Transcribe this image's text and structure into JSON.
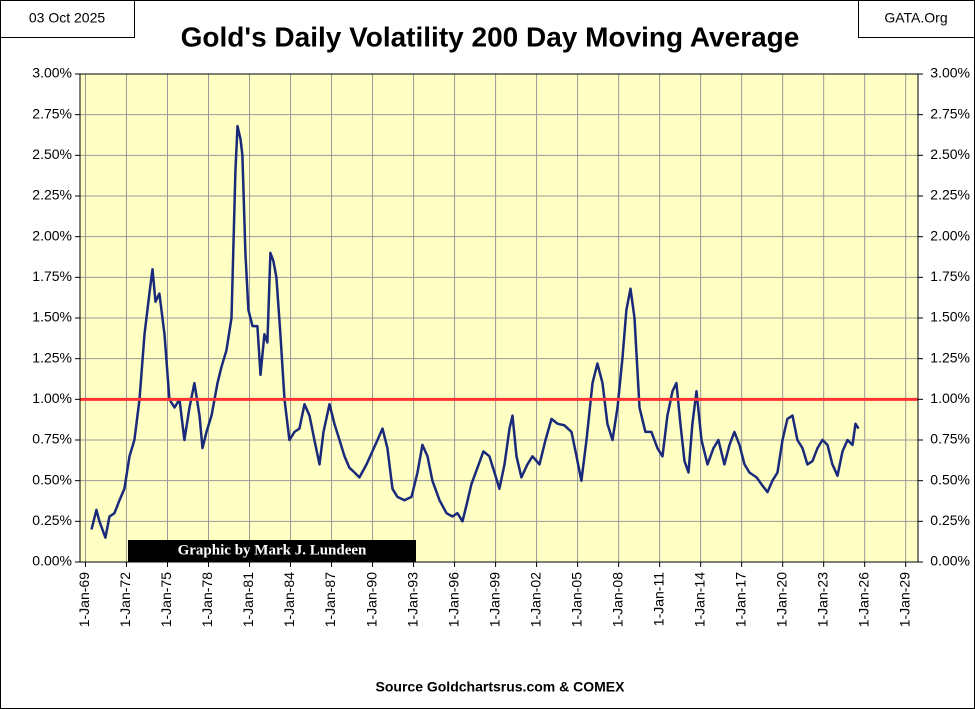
{
  "chart_data": {
    "type": "line",
    "title": "Gold's Daily Volatility 200 Day Moving Average",
    "date_label": "03 Oct 2025",
    "site": "GATA.Org",
    "credit": "Graphic by Mark J. Lundeen",
    "source": "Source Goldchartsrus.com & COMEX",
    "color": "#1a2a7a",
    "grid": true,
    "x": [
      1969.44,
      1969.8,
      1970.02,
      1970.46,
      1970.76,
      1971.12,
      1971.49,
      1971.85,
      1972.22,
      1972.58,
      1972.95,
      1973.32,
      1973.68,
      1973.9,
      1974.12,
      1974.41,
      1974.78,
      1975.14,
      1975.51,
      1975.88,
      1976.24,
      1976.61,
      1976.97,
      1977.34,
      1977.56,
      1977.85,
      1978.22,
      1978.66,
      1978.95,
      1979.31,
      1979.68,
      1979.97,
      1980.12,
      1980.34,
      1980.48,
      1980.7,
      1980.92,
      1981.22,
      1981.58,
      1981.8,
      1982.09,
      1982.31,
      1982.53,
      1982.75,
      1982.97,
      1983.26,
      1983.56,
      1983.92,
      1984.29,
      1984.65,
      1985.02,
      1985.39,
      1985.75,
      1986.12,
      1986.41,
      1986.85,
      1987.21,
      1987.58,
      1987.95,
      1988.31,
      1988.68,
      1989.04,
      1989.56,
      1989.99,
      1990.36,
      1990.73,
      1991.09,
      1991.46,
      1991.82,
      1992.34,
      1992.85,
      1993.29,
      1993.65,
      1994.02,
      1994.38,
      1994.9,
      1995.41,
      1995.85,
      1996.21,
      1996.58,
      1996.87,
      1997.24,
      1997.68,
      1998.11,
      1998.55,
      1998.92,
      1999.28,
      1999.65,
      2000.02,
      2000.24,
      2000.53,
      2000.89,
      2001.33,
      2001.7,
      2002.21,
      2002.65,
      2003.09,
      2003.53,
      2004.04,
      2004.55,
      2004.92,
      2005.28,
      2005.65,
      2006.09,
      2006.45,
      2006.82,
      2007.18,
      2007.55,
      2007.92,
      2008.28,
      2008.57,
      2008.87,
      2009.16,
      2009.53,
      2009.96,
      2010.4,
      2010.84,
      2011.21,
      2011.57,
      2011.94,
      2012.23,
      2012.52,
      2012.82,
      2013.11,
      2013.4,
      2013.7,
      2014.06,
      2014.5,
      2014.94,
      2015.3,
      2015.74,
      2016.11,
      2016.47,
      2016.84,
      2017.21,
      2017.57,
      2018.09,
      2018.52,
      2018.89,
      2019.25,
      2019.62,
      2019.99,
      2020.35,
      2020.72,
      2021.08,
      2021.45,
      2021.81,
      2022.18,
      2022.55,
      2022.91,
      2023.28,
      2023.64,
      2024.01,
      2024.38,
      2024.74,
      2025.11,
      2025.33,
      2025.55
    ],
    "values": [
      0.2,
      0.32,
      0.25,
      0.15,
      0.28,
      0.3,
      0.38,
      0.45,
      0.65,
      0.75,
      1.0,
      1.4,
      1.65,
      1.8,
      1.6,
      1.65,
      1.4,
      1.0,
      0.95,
      1.0,
      0.75,
      0.95,
      1.1,
      0.9,
      0.7,
      0.8,
      0.9,
      1.1,
      1.2,
      1.3,
      1.5,
      2.4,
      2.68,
      2.6,
      2.5,
      1.9,
      1.55,
      1.45,
      1.45,
      1.15,
      1.4,
      1.35,
      1.9,
      1.85,
      1.75,
      1.4,
      1.0,
      0.75,
      0.8,
      0.82,
      0.97,
      0.9,
      0.75,
      0.6,
      0.8,
      0.97,
      0.85,
      0.75,
      0.65,
      0.58,
      0.55,
      0.52,
      0.6,
      0.68,
      0.75,
      0.82,
      0.7,
      0.45,
      0.4,
      0.38,
      0.4,
      0.55,
      0.72,
      0.65,
      0.5,
      0.38,
      0.3,
      0.28,
      0.3,
      0.25,
      0.35,
      0.48,
      0.58,
      0.68,
      0.65,
      0.55,
      0.45,
      0.6,
      0.82,
      0.9,
      0.65,
      0.52,
      0.6,
      0.65,
      0.6,
      0.75,
      0.88,
      0.85,
      0.84,
      0.8,
      0.65,
      0.5,
      0.75,
      1.1,
      1.22,
      1.1,
      0.85,
      0.75,
      0.95,
      1.25,
      1.55,
      1.68,
      1.5,
      0.95,
      0.8,
      0.8,
      0.7,
      0.65,
      0.9,
      1.05,
      1.1,
      0.85,
      0.62,
      0.55,
      0.85,
      1.05,
      0.75,
      0.6,
      0.7,
      0.75,
      0.6,
      0.72,
      0.8,
      0.72,
      0.6,
      0.55,
      0.52,
      0.47,
      0.43,
      0.5,
      0.55,
      0.75,
      0.88,
      0.9,
      0.75,
      0.7,
      0.6,
      0.62,
      0.7,
      0.75,
      0.72,
      0.6,
      0.53,
      0.68,
      0.75,
      0.72,
      0.85,
      0.82
    ],
    "reference_lines": [
      {
        "value": 1.0,
        "color": "#ff3333"
      }
    ],
    "xlim": [
      1968.6,
      2029.9
    ],
    "xticks": [
      {
        "value": 1969,
        "label": "1-Jan-69"
      },
      {
        "value": 1972,
        "label": "1-Jan-72"
      },
      {
        "value": 1975,
        "label": "1-Jan-75"
      },
      {
        "value": 1978,
        "label": "1-Jan-78"
      },
      {
        "value": 1981,
        "label": "1-Jan-81"
      },
      {
        "value": 1984,
        "label": "1-Jan-84"
      },
      {
        "value": 1987,
        "label": "1-Jan-87"
      },
      {
        "value": 1990,
        "label": "1-Jan-90"
      },
      {
        "value": 1993,
        "label": "1-Jan-93"
      },
      {
        "value": 1996,
        "label": "1-Jan-96"
      },
      {
        "value": 1999,
        "label": "1-Jan-99"
      },
      {
        "value": 2002,
        "label": "1-Jan-02"
      },
      {
        "value": 2005,
        "label": "1-Jan-05"
      },
      {
        "value": 2008,
        "label": "1-Jan-08"
      },
      {
        "value": 2011,
        "label": "1-Jan-11"
      },
      {
        "value": 2014,
        "label": "1-Jan-14"
      },
      {
        "value": 2017,
        "label": "1-Jan-17"
      },
      {
        "value": 2020,
        "label": "1-Jan-20"
      },
      {
        "value": 2023,
        "label": "1-Jan-23"
      },
      {
        "value": 2026,
        "label": "1-Jan-26"
      },
      {
        "value": 2029,
        "label": "1-Jan-29"
      }
    ],
    "ylim": [
      0,
      3
    ],
    "yticks": [
      {
        "value": 0,
        "label": "0.00%"
      },
      {
        "value": 0.25,
        "label": "0.25%"
      },
      {
        "value": 0.5,
        "label": "0.50%"
      },
      {
        "value": 0.75,
        "label": "0.75%"
      },
      {
        "value": 1,
        "label": "1.00%"
      },
      {
        "value": 1.25,
        "label": "1.25%"
      },
      {
        "value": 1.5,
        "label": "1.50%"
      },
      {
        "value": 1.75,
        "label": "1.75%"
      },
      {
        "value": 2,
        "label": "2.00%"
      },
      {
        "value": 2.25,
        "label": "2.25%"
      },
      {
        "value": 2.5,
        "label": "2.50%"
      },
      {
        "value": 2.75,
        "label": "2.75%"
      },
      {
        "value": 3,
        "label": "3.00%"
      }
    ],
    "y2lim": [
      0,
      3
    ],
    "y2ticks": [
      {
        "value": 0,
        "label": "0.00%"
      },
      {
        "value": 0.25,
        "label": "0.25%"
      },
      {
        "value": 0.5,
        "label": "0.50%"
      },
      {
        "value": 0.75,
        "label": "0.75%"
      },
      {
        "value": 1,
        "label": "1.00%"
      },
      {
        "value": 1.25,
        "label": "1.25%"
      },
      {
        "value": 1.5,
        "label": "1.50%"
      },
      {
        "value": 1.75,
        "label": "1.75%"
      },
      {
        "value": 2,
        "label": "2.00%"
      },
      {
        "value": 2.25,
        "label": "2.25%"
      },
      {
        "value": 2.5,
        "label": "2.50%"
      },
      {
        "value": 2.75,
        "label": "2.75%"
      },
      {
        "value": 3,
        "label": "3.00%"
      }
    ]
  }
}
